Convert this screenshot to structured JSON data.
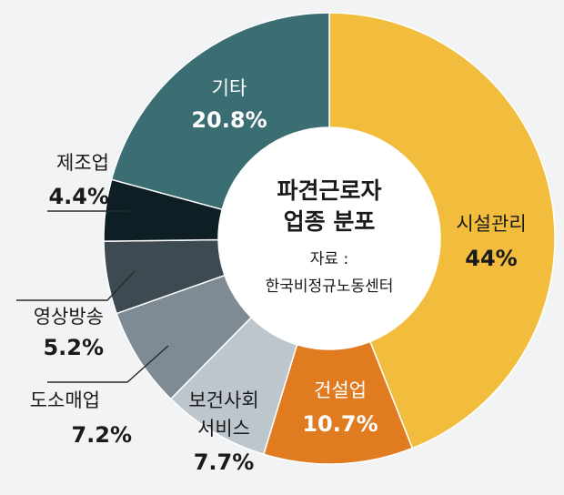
{
  "chart_data": {
    "type": "pie",
    "donut": true,
    "title_line1": "파견근로자",
    "title_line2": "업종 분포",
    "source_line1": "자료 :",
    "source_line2": "한국비정규노동센터",
    "slices": [
      {
        "name": "시설관리",
        "value": 44,
        "label": "44%",
        "color": "#f2bd3c"
      },
      {
        "name": "건설업",
        "value": 10.7,
        "label": "10.7%",
        "color": "#e07b1f"
      },
      {
        "name": "보건사회",
        "name2": "서비스",
        "value": 7.7,
        "label": "7.7%",
        "color": "#bec6cd"
      },
      {
        "name": "도소매업",
        "value": 7.2,
        "label": "7.2%",
        "color": "#7e8b94"
      },
      {
        "name": "영상방송",
        "value": 5.2,
        "label": "5.2%",
        "color": "#3d4a52"
      },
      {
        "name": "제조업",
        "value": 4.4,
        "label": "4.4%",
        "color": "#0d1e24"
      },
      {
        "name": "기타",
        "value": 20.8,
        "label": "20.8%",
        "color": "#3a6e72"
      }
    ]
  }
}
